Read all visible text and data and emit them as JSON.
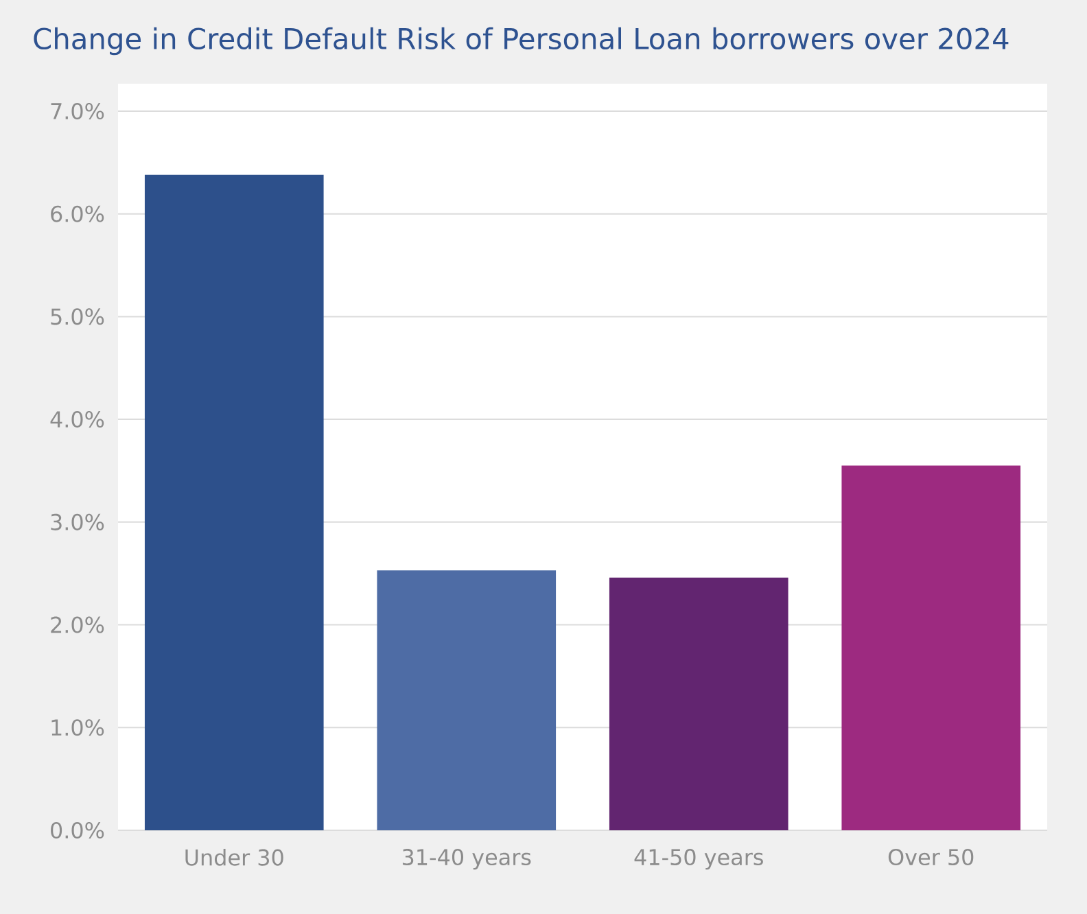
{
  "chart_data": {
    "type": "bar",
    "title": "Change in Credit Default Risk of Personal Loan borrowers over 2024",
    "categories": [
      "Under 30",
      "31-40 years",
      "41-50 years",
      "Over 50"
    ],
    "values": [
      6.38,
      2.53,
      2.46,
      3.55
    ],
    "colors": [
      "#2d508b",
      "#4e6ca5",
      "#622570",
      "#9d2a80"
    ],
    "ylim": [
      0,
      7
    ],
    "yticks": [
      {
        "value": 0,
        "label": "0.0%"
      },
      {
        "value": 1,
        "label": "1.0%"
      },
      {
        "value": 2,
        "label": "2.0%"
      },
      {
        "value": 3,
        "label": "3.0%"
      },
      {
        "value": 4,
        "label": "4.0%"
      },
      {
        "value": 5,
        "label": "5.0%"
      },
      {
        "value": 6,
        "label": "6.0%"
      },
      {
        "value": 7,
        "label": "7.0%"
      }
    ],
    "grid": "y"
  }
}
